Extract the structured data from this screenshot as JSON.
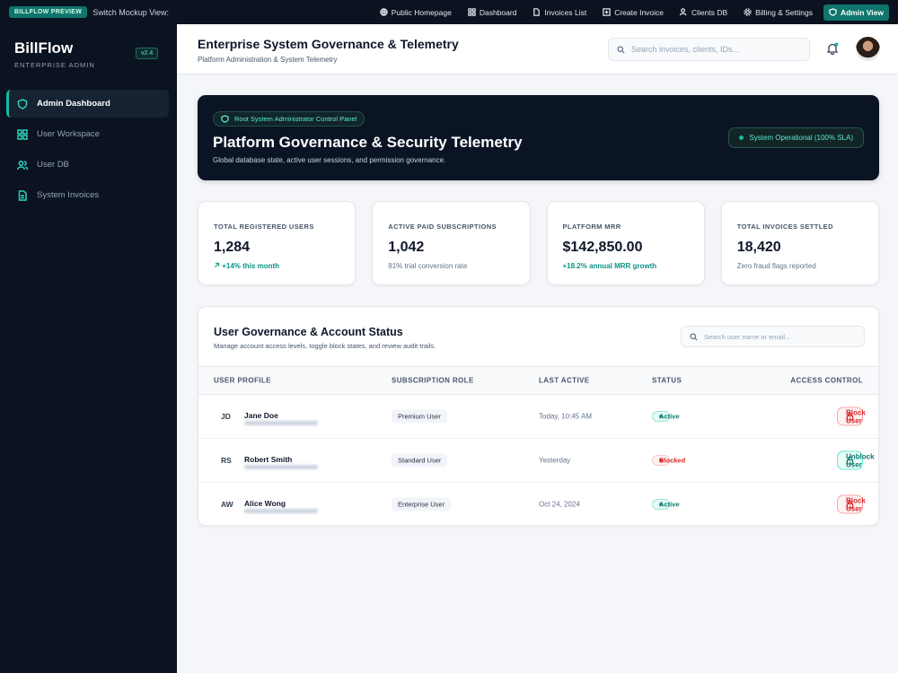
{
  "topbar": {
    "badge": "BILLFLOW PREVIEW",
    "label": "Switch Mockup View:",
    "nav": [
      "Public Homepage",
      "Dashboard",
      "Invoices List",
      "Create Invoice",
      "Clients DB",
      "Billing & Settings",
      "Admin View"
    ]
  },
  "sidebar": {
    "brand": "BillFlow",
    "tagline": "ENTERPRISE ADMIN",
    "version": "v2.4",
    "nav": [
      "Admin Dashboard",
      "User Workspace",
      "User DB",
      "System Invoices"
    ]
  },
  "header": {
    "title": "Enterprise System Governance & Telemetry",
    "subtitle": "Platform Administration & System Telemetry",
    "search_placeholder": "Search invoices, clients, IDs..."
  },
  "hero": {
    "badge": "Root System Administrator Control Panel",
    "title": "Platform Governance & Security Telemetry",
    "description": "Global database state, active user sessions, and permission governance.",
    "status": "System Operational (100% SLA)"
  },
  "stats": [
    {
      "label": "TOTAL REGISTERED USERS",
      "value": "1,284",
      "note": "+14% this month"
    },
    {
      "label": "ACTIVE PAID SUBSCRIPTIONS",
      "value": "1,042",
      "note": "81% trial conversion rate"
    },
    {
      "label": "PLATFORM MRR",
      "value": "$142,850.00",
      "note": "+18.2% annual MRR growth"
    },
    {
      "label": "TOTAL INVOICES SETTLED",
      "value": "18,420",
      "note": "Zero fraud flags reported"
    }
  ],
  "table": {
    "title": "User Governance & Account Status",
    "subtitle": "Manage account access levels, toggle block states, and review audit trails.",
    "search_placeholder": "Search user name or email...",
    "columns": [
      "USER PROFILE",
      "SUBSCRIPTION ROLE",
      "LAST ACTIVE",
      "STATUS",
      "ACCESS CONTROL"
    ],
    "rows": [
      {
        "initials": "JD",
        "name": "Jane Doe",
        "role": "Premium User",
        "last_active": "Today, 10:45 AM",
        "status": "Active",
        "action": "Block User"
      },
      {
        "initials": "RS",
        "name": "Robert Smith",
        "role": "Standard User",
        "last_active": "Yesterday",
        "status": "Blocked",
        "action": "Unblock User"
      },
      {
        "initials": "AW",
        "name": "Alice Wong",
        "role": "Enterprise User",
        "last_active": "Oct 24, 2024",
        "status": "Active",
        "action": "Block User"
      }
    ]
  }
}
